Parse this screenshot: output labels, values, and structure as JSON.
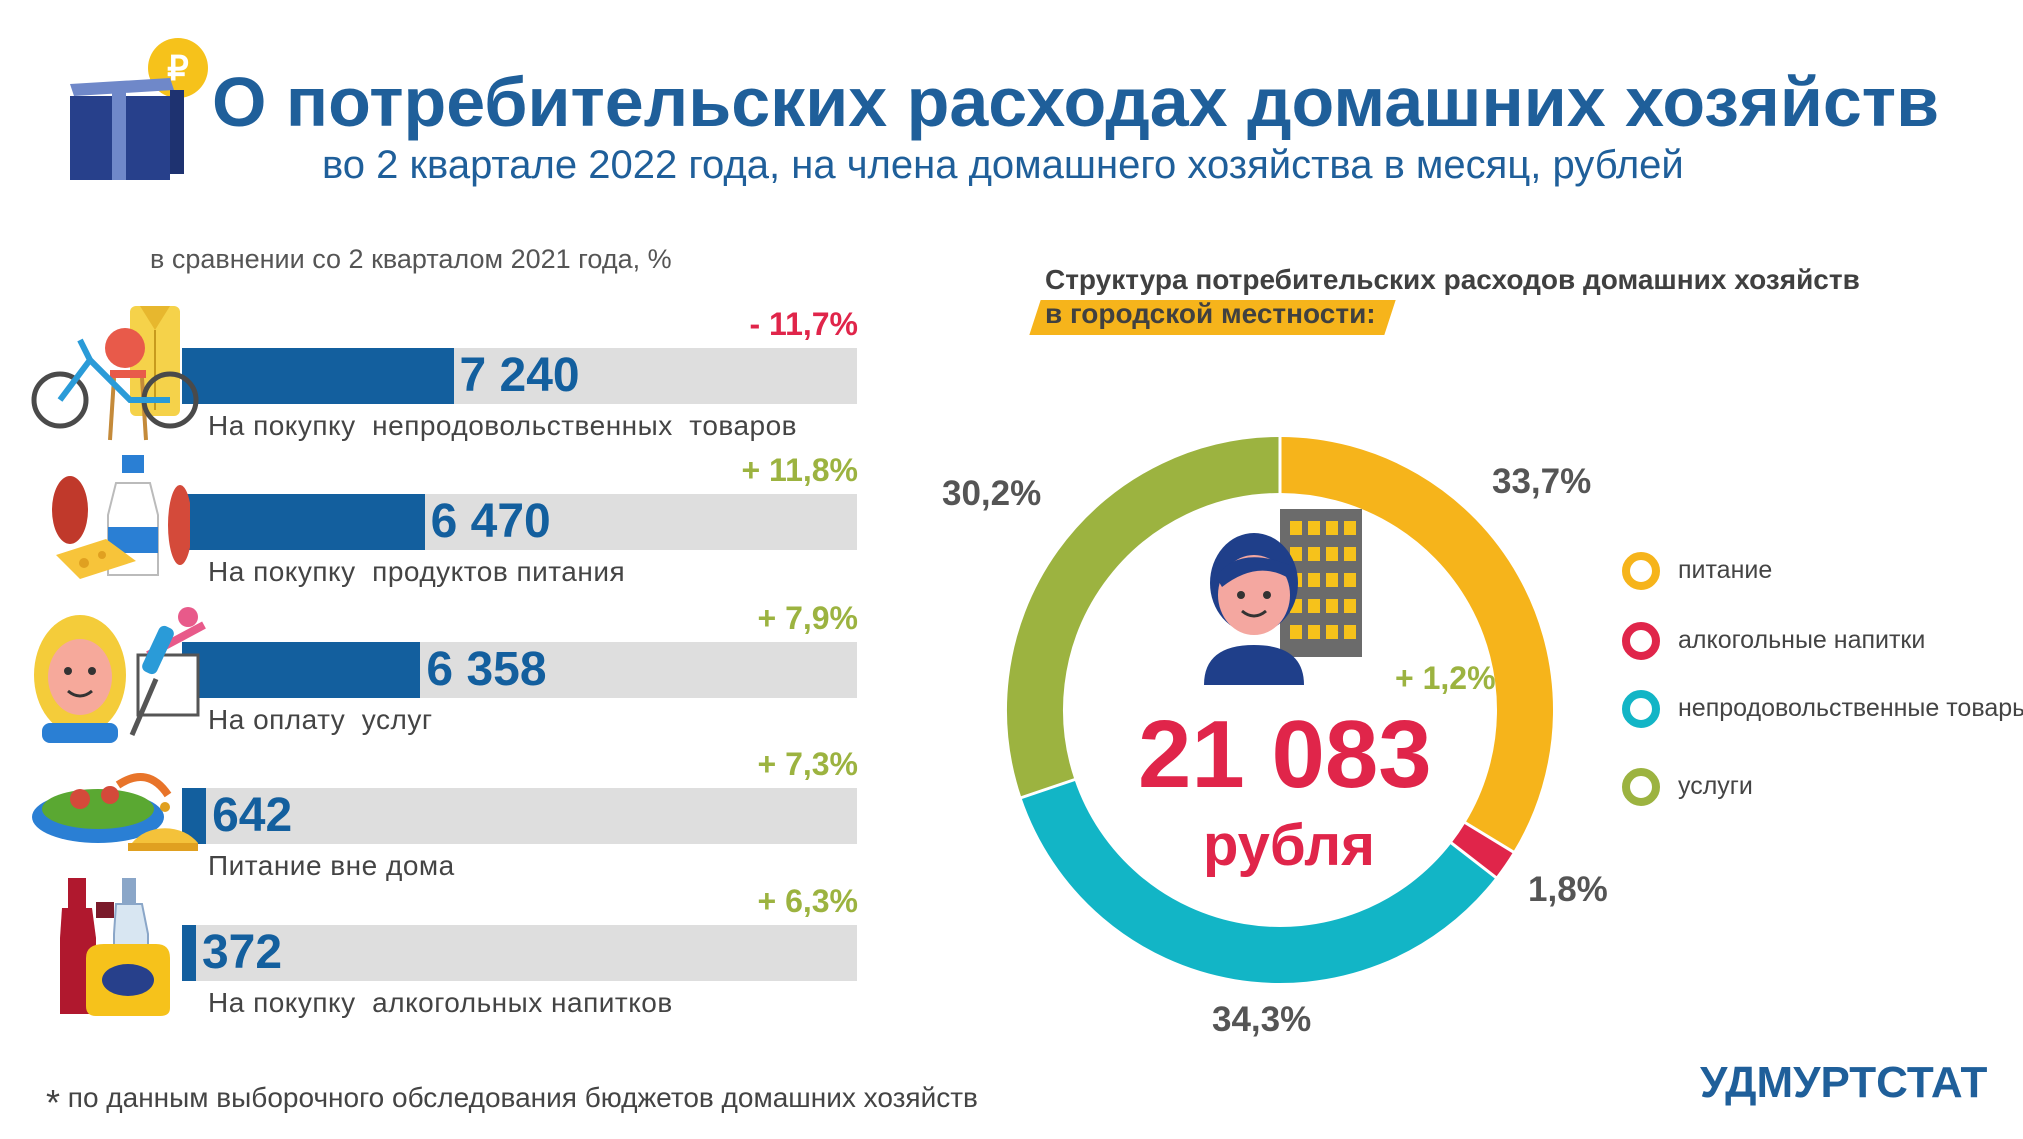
{
  "header": {
    "title": "О потребительских расходах домашних хозяйств",
    "subtitle": "во 2 квартале 2022 года, на члена домашнего хозяйства в месяц, рублей"
  },
  "comparison_note": "в сравнении со 2 кварталом 2021 года, %",
  "structure": {
    "title_line1": "Структура потребительских расходов домашних хозяйств",
    "title_line2": "в городской местности:",
    "total_value": "21 083",
    "total_unit": "рубля",
    "total_change": "+ 1,2%"
  },
  "footnote": "по данным выборочного обследования бюджетов домашних хозяйств",
  "footnote_marker": "*",
  "brand": "УДМУРТСТАТ",
  "colors": {
    "bar": "#135f9e",
    "track": "#dedede",
    "negative": "#e0254a",
    "positive": "#9cb340",
    "food": "#f6b41b",
    "alcohol": "#e0254a",
    "nonfood": "#12b5c6",
    "services": "#9cb340"
  },
  "chart_data": [
    {
      "type": "bar",
      "orientation": "horizontal",
      "categories": [
        "На покупку  непродовольственных  товаров",
        "На покупку  продуктов питания",
        "На оплату  услуг",
        "Питание вне дома",
        "На покупку  алкогольных напитков"
      ],
      "values": [
        7240,
        6470,
        6358,
        642,
        372
      ],
      "value_labels": [
        "7 240",
        "6 470",
        "6 358",
        "642",
        "372"
      ],
      "changes": [
        "- 11,7%",
        "+ 11,8%",
        "+ 7,9%",
        "+ 7,3%",
        "+ 6,3%"
      ],
      "change_signs": [
        "negative",
        "positive",
        "positive",
        "positive",
        "positive"
      ],
      "icons": [
        "household-goods-icon",
        "groceries-icon",
        "services-icon",
        "restaurant-icon",
        "bottles-icon"
      ],
      "xlim": [
        0,
        18000
      ]
    },
    {
      "type": "pie",
      "donut": true,
      "slices": [
        {
          "label": "питание",
          "value": 33.7,
          "value_label": "33,7%",
          "color": "#f6b41b"
        },
        {
          "label": "алкогольные напитки",
          "value": 1.8,
          "value_label": "1,8%",
          "color": "#e0254a"
        },
        {
          "label": "непродовольственные товары",
          "value": 34.3,
          "value_label": "34,3%",
          "color": "#12b5c6"
        },
        {
          "label": "услуги",
          "value": 30.2,
          "value_label": "30,2%",
          "color": "#9cb340"
        }
      ],
      "legend_position": "right"
    }
  ]
}
